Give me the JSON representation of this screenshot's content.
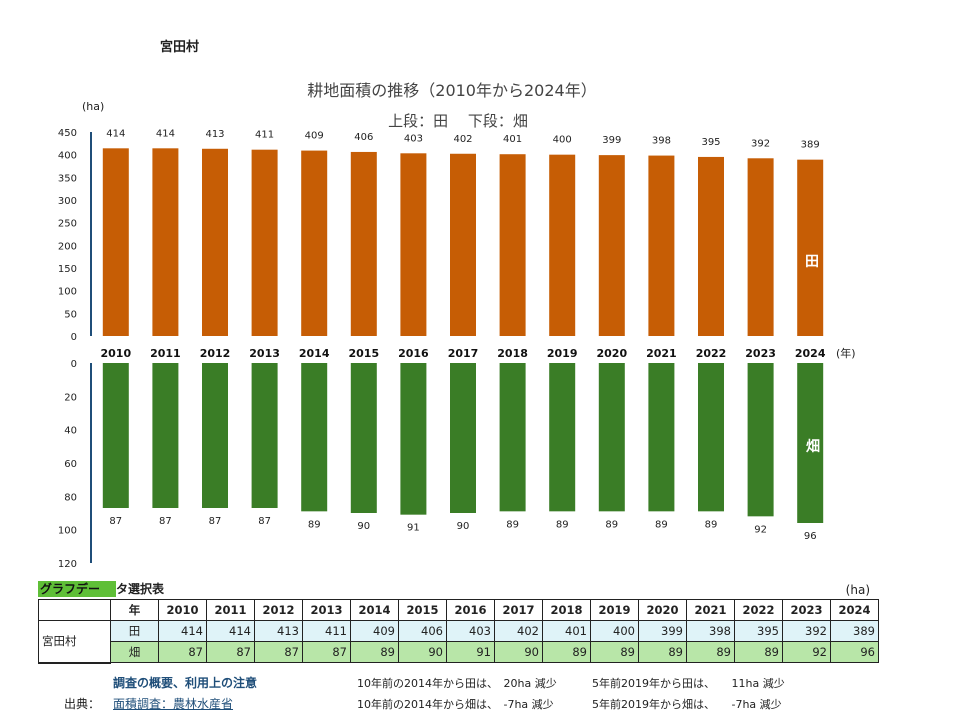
{
  "village": "宮田村",
  "chart_data": {
    "type": "bar",
    "title": "耕地面積の推移（2010年から2024年）",
    "subtitle": "上段：田　 下段：畑",
    "ylabel": "(ha)",
    "xlabel": "(年)",
    "categories": [
      "2010",
      "2011",
      "2012",
      "2013",
      "2014",
      "2015",
      "2016",
      "2017",
      "2018",
      "2019",
      "2020",
      "2021",
      "2022",
      "2023",
      "2024"
    ],
    "series": [
      {
        "name": "田",
        "color": "#c65d05",
        "values": [
          414,
          414,
          413,
          411,
          409,
          406,
          403,
          402,
          401,
          400,
          399,
          398,
          395,
          392,
          389
        ],
        "ylim": [
          0,
          450
        ],
        "ticks": [
          0,
          50,
          100,
          150,
          200,
          250,
          300,
          350,
          400,
          450
        ]
      },
      {
        "name": "畑",
        "color": "#3a7d26",
        "values": [
          87,
          87,
          87,
          87,
          89,
          90,
          91,
          90,
          89,
          89,
          89,
          89,
          89,
          92,
          96
        ],
        "ylim": [
          0,
          120
        ],
        "ticks": [
          0,
          20,
          40,
          60,
          80,
          100,
          120
        ],
        "inverted": true
      }
    ]
  },
  "table": {
    "title_highlight": "グラフデー",
    "title_rest": "タ選択表",
    "unit": "(ha)",
    "year_header": "年",
    "paddy_label": "田",
    "field_label": "畑"
  },
  "footer": {
    "notes_link": "調査の概要、利用上の注意",
    "source_label": "出典：",
    "source_link": "面積調査：農林水産省",
    "note1": "10年前の2014年から田は、　20ha 減少",
    "note2": "5年前2019年から田は、　　11ha 減少",
    "note3": "10年前の2014年から畑は、　-7ha 減少",
    "note4": "5年前2019年から畑は、　　-7ha 減少"
  }
}
